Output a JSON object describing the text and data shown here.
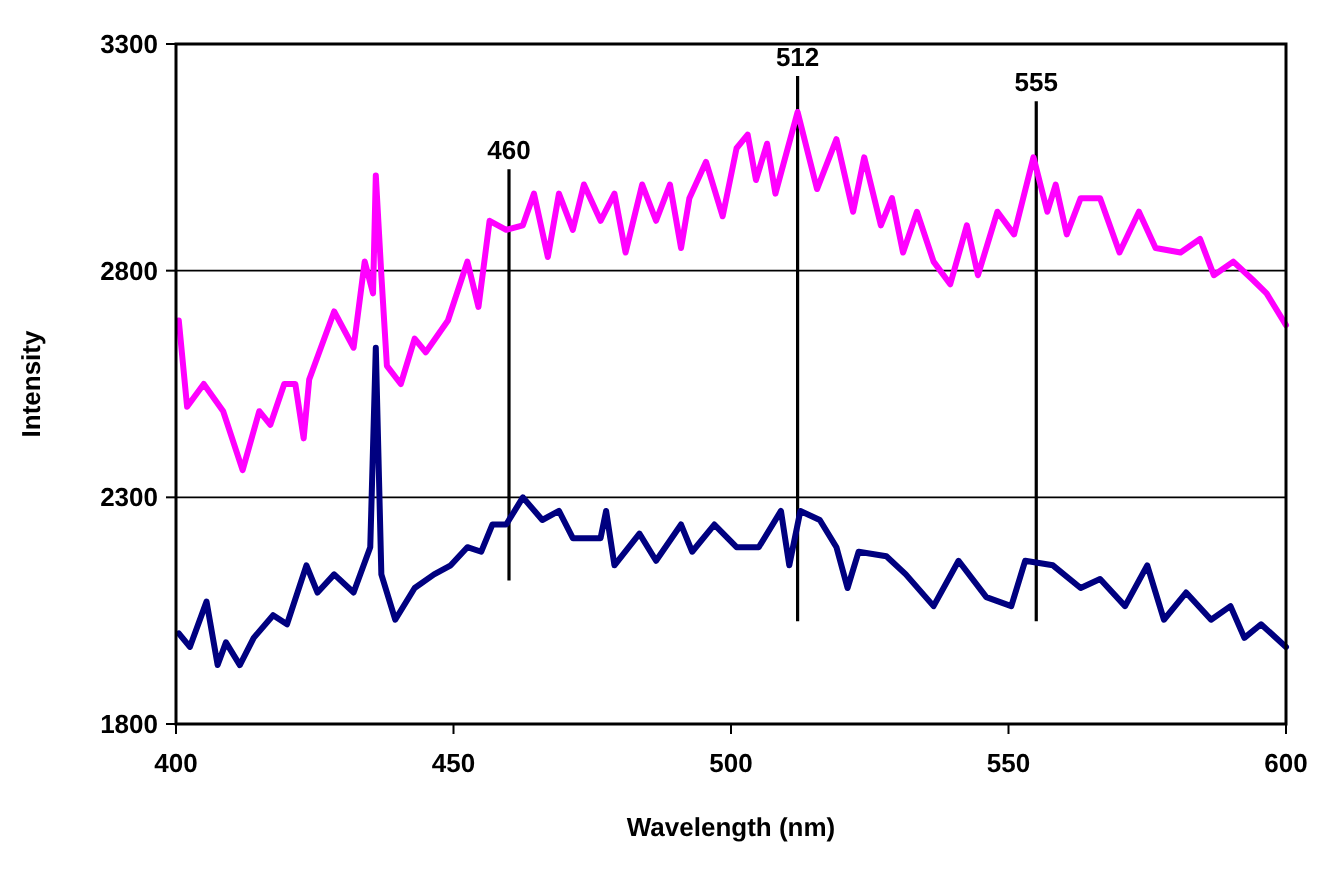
{
  "chart_data": {
    "type": "line",
    "xlabel": "Wavelength (nm)",
    "ylabel": "Intensity",
    "xlim": [
      400,
      600
    ],
    "xticks": [
      400,
      450,
      500,
      550,
      600
    ],
    "ylim": [
      1800,
      3300
    ],
    "yticks": [
      1800,
      2300,
      2800,
      3300
    ],
    "grid": "y",
    "ref_lines": [
      {
        "axis": "x",
        "value": 460,
        "label": "460",
        "color": "#000000"
      },
      {
        "axis": "x",
        "value": 512,
        "label": "512",
        "color": "#000000"
      },
      {
        "axis": "x",
        "value": 555,
        "label": "555",
        "color": "#000000"
      }
    ],
    "series": [
      {
        "color": "#ff00ff",
        "x": [
          400.5,
          402,
          405,
          408.5,
          412,
          415,
          417,
          419.5,
          421.5,
          423,
          424,
          428.5,
          432,
          434,
          435.5,
          436,
          437,
          438,
          440.5,
          443,
          445,
          449,
          452.5,
          454.5,
          456.5,
          459.5,
          462.5,
          464.5,
          467,
          469,
          471.5,
          473.5,
          476.5,
          479,
          481,
          484,
          486.5,
          489,
          491,
          492.5,
          495.5,
          498.5,
          501,
          503,
          504.5,
          506.5,
          508,
          512,
          515.5,
          519,
          522,
          524,
          527,
          529,
          531,
          533.5,
          536.5,
          539.5,
          542.5,
          544.5,
          548,
          551,
          554.5,
          557,
          558.5,
          560.5,
          563,
          566.5,
          570,
          573.5,
          576.5,
          581,
          584.5,
          587,
          590.5,
          594,
          596.5,
          600
        ],
        "values": [
          2690,
          2500,
          2550,
          2490,
          2360,
          2490,
          2460,
          2550,
          2550,
          2430,
          2560,
          2710,
          2630,
          2820,
          2750,
          3010,
          2790,
          2590,
          2550,
          2650,
          2620,
          2690,
          2820,
          2720,
          2910,
          2890,
          2900,
          2970,
          2830,
          2970,
          2890,
          2990,
          2910,
          2970,
          2840,
          2990,
          2910,
          2990,
          2850,
          2960,
          3040,
          2920,
          3070,
          3100,
          3000,
          3080,
          2970,
          3150,
          2980,
          3090,
          2930,
          3050,
          2900,
          2960,
          2840,
          2930,
          2820,
          2770,
          2900,
          2790,
          2930,
          2880,
          3050,
          2930,
          2990,
          2880,
          2960,
          2960,
          2840,
          2930,
          2850,
          2840,
          2870,
          2790,
          2820,
          2780,
          2750,
          2680
        ]
      },
      {
        "color": "#000080",
        "x": [
          400.5,
          402.5,
          405.5,
          407.5,
          409,
          411.5,
          414,
          417.5,
          420,
          423.5,
          425.5,
          428.5,
          432,
          435,
          436,
          437,
          439.5,
          443,
          446.5,
          449.5,
          452.5,
          455,
          457,
          459.5,
          462.5,
          466,
          469,
          471.5,
          476.5,
          477.5,
          479,
          483.5,
          486.5,
          491,
          493,
          497,
          501,
          505,
          509,
          510.5,
          512.5,
          516,
          519,
          521,
          523,
          528,
          531.5,
          536.5,
          541,
          546,
          550.5,
          553,
          558,
          563,
          566.5,
          571,
          575,
          578,
          582,
          586.5,
          590,
          592.5,
          595.5,
          600
        ],
        "values": [
          2000,
          1970,
          2070,
          1930,
          1980,
          1930,
          1990,
          2040,
          2020,
          2150,
          2090,
          2130,
          2090,
          2190,
          2630,
          2130,
          2030,
          2100,
          2130,
          2150,
          2190,
          2180,
          2240,
          2240,
          2300,
          2250,
          2270,
          2210,
          2210,
          2270,
          2150,
          2220,
          2160,
          2240,
          2180,
          2240,
          2190,
          2190,
          2270,
          2150,
          2270,
          2250,
          2190,
          2100,
          2180,
          2170,
          2130,
          2060,
          2160,
          2080,
          2060,
          2160,
          2150,
          2100,
          2120,
          2060,
          2150,
          2030,
          2090,
          2030,
          2060,
          1990,
          2020,
          1970
        ]
      }
    ]
  }
}
